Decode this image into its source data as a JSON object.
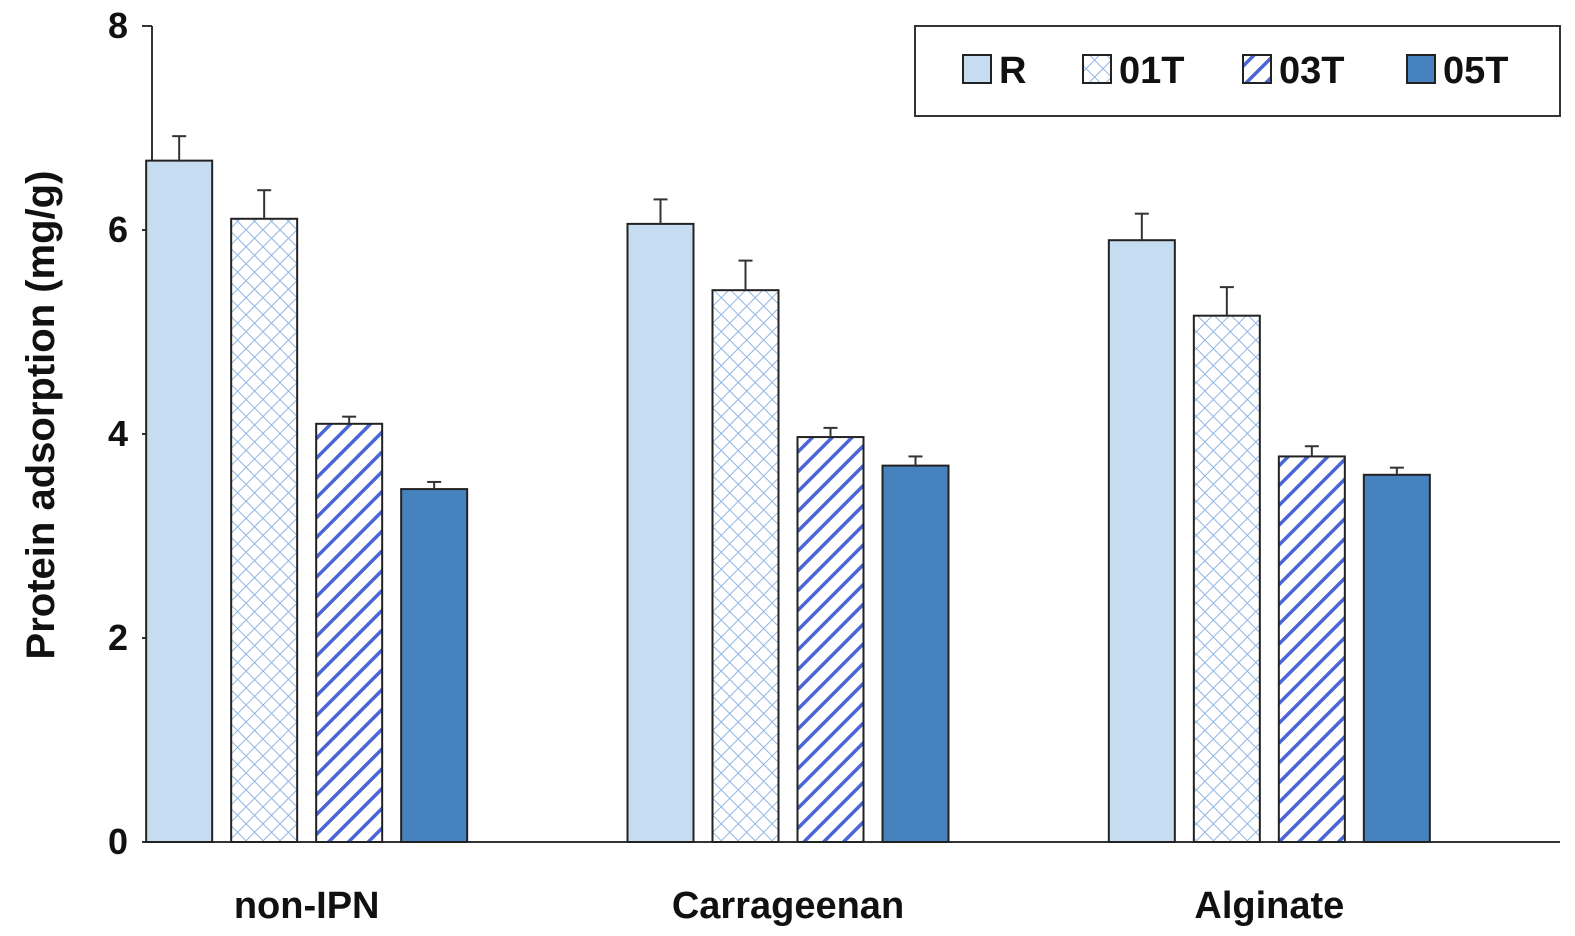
{
  "chart_data": {
    "type": "bar",
    "title": "",
    "xlabel": "",
    "ylabel": "Protein adsorption (mg/g)",
    "ylim": [
      0,
      8
    ],
    "yticks": [
      0,
      2,
      4,
      6,
      8
    ],
    "grid": false,
    "legend_position": "top-right",
    "categories": [
      "non-IPN",
      "Carrageenan",
      "Alginate"
    ],
    "series": [
      {
        "name": "R",
        "pattern": "solid-light",
        "color": "#c6dcf1",
        "values": [
          6.68,
          6.06,
          5.9
        ],
        "errors": [
          0.24,
          0.24,
          0.26
        ]
      },
      {
        "name": "01T",
        "pattern": "crosshatch",
        "color": "#8fb6e3",
        "values": [
          6.11,
          5.41,
          5.16
        ],
        "errors": [
          0.28,
          0.29,
          0.28
        ]
      },
      {
        "name": "03T",
        "pattern": "diagonal",
        "color": "#4a66d6",
        "values": [
          4.1,
          3.97,
          3.78
        ],
        "errors": [
          0.07,
          0.09,
          0.1
        ]
      },
      {
        "name": "05T",
        "pattern": "solid-dark",
        "color": "#4682bd",
        "values": [
          3.46,
          3.69,
          3.6
        ],
        "errors": [
          0.07,
          0.09,
          0.07
        ]
      }
    ]
  }
}
